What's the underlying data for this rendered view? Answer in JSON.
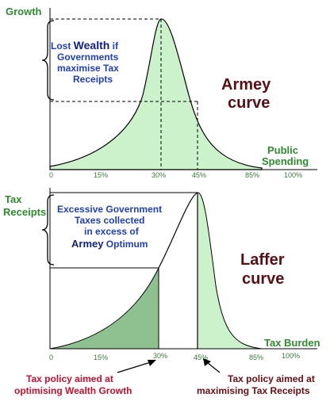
{
  "top_chart": {
    "y_label": "Growth",
    "x_label_line1": "Public",
    "x_label_line2": "Spending",
    "title_line1": "Armey",
    "title_line2": "curve",
    "annotation_line1_a": "Lost ",
    "annotation_line1_b": "Wealth",
    "annotation_line1_c": "  if",
    "annotation_line2": "Governments",
    "annotation_line3": "maximise Tax",
    "annotation_line4": "Receipts",
    "ticks": [
      "0",
      "15%",
      "30%",
      "45%",
      "85%",
      "100%"
    ]
  },
  "bottom_chart": {
    "y_label_line1": "Tax",
    "y_label_line2": "Receipts",
    "x_label": "Tax Burden",
    "title_line1": "Laffer",
    "title_line2": "curve",
    "annotation_line1": "Excessive Government",
    "annotation_line2": "Taxes collected",
    "annotation_line3": "in excess of",
    "annotation_line4_a": "Armey",
    "annotation_line4_b": " Optimum",
    "ticks": [
      "0",
      "15%",
      "30%",
      "45%",
      "85%",
      "100%"
    ]
  },
  "notes": {
    "left_line1": "Tax policy aimed at",
    "left_line2": "optimising Wealth Growth",
    "right_line1": "Tax policy aimed at",
    "right_line2": "maximising Tax Receipts"
  },
  "colors": {
    "fill_light": "#ccf2cc",
    "fill_dark": "#8fc08f",
    "label_green": "#2e8b2e",
    "annotation_blue": "#1f3fc0",
    "title_maroon": "#5a0f14",
    "note_red": "#c8102e"
  }
}
